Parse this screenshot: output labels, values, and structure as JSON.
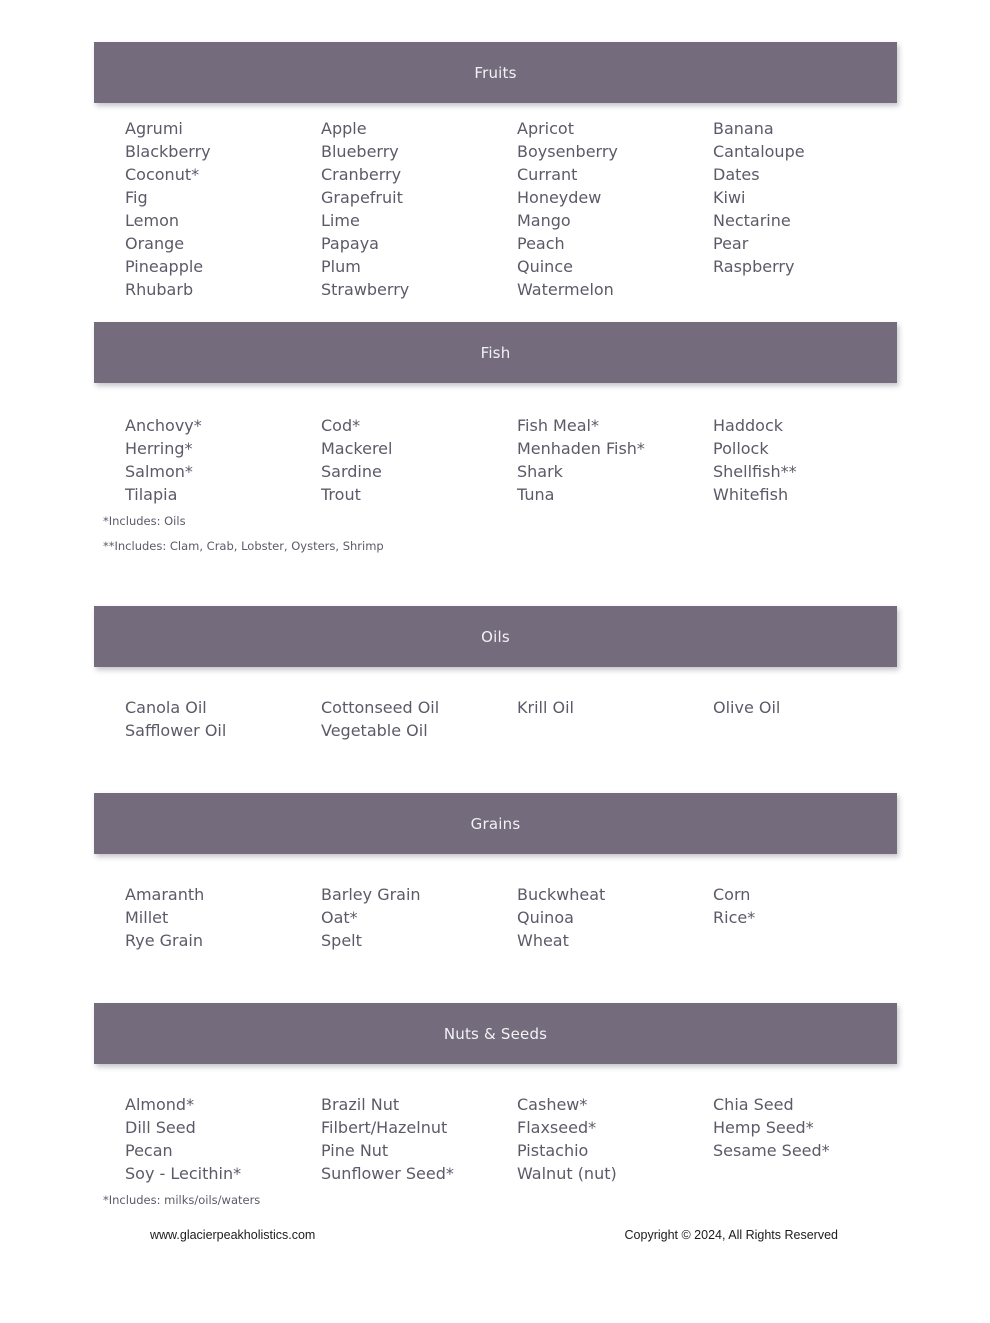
{
  "colors": {
    "header_bar": "#746c7c",
    "header_text": "#f2f1f4",
    "item_text": "#5e5968",
    "footer_text": "#1c1c1c"
  },
  "sections": [
    {
      "id": "fruits",
      "title": "Fruits",
      "columns": [
        [
          "Agrumi",
          "Blackberry",
          "Coconut*",
          "Fig",
          "Lemon",
          "Orange",
          "Pineapple",
          "Rhubarb"
        ],
        [
          "Apple",
          "Blueberry",
          "Cranberry",
          "Grapefruit",
          "Lime",
          "Papaya",
          "Plum",
          "Strawberry"
        ],
        [
          "Apricot",
          "Boysenberry",
          "Currant",
          "Honeydew",
          "Mango",
          "Peach",
          "Quince",
          "Watermelon"
        ],
        [
          "Banana",
          "Cantaloupe",
          "Dates",
          "Kiwi",
          "Nectarine",
          "Pear",
          "Raspberry"
        ]
      ],
      "footnotes": []
    },
    {
      "id": "fish",
      "title": "Fish",
      "columns": [
        [
          "Anchovy*",
          "Herring*",
          "Salmon*",
          "Tilapia"
        ],
        [
          "Cod*",
          "Mackerel",
          "Sardine",
          "Trout"
        ],
        [
          "Fish Meal*",
          "Menhaden Fish*",
          "Shark",
          "Tuna"
        ],
        [
          "Haddock",
          "Pollock",
          "Shellfish**",
          "Whitefish"
        ]
      ],
      "footnotes": [
        "*Includes: Oils",
        "**Includes: Clam, Crab, Lobster, Oysters, Shrimp"
      ]
    },
    {
      "id": "oils",
      "title": "Oils",
      "columns": [
        [
          "Canola Oil",
          "Safflower Oil"
        ],
        [
          "Cottonseed Oil",
          "Vegetable Oil"
        ],
        [
          "Krill Oil"
        ],
        [
          "Olive Oil"
        ]
      ],
      "footnotes": []
    },
    {
      "id": "grains",
      "title": "Grains",
      "columns": [
        [
          "Amaranth",
          "Millet",
          "Rye Grain"
        ],
        [
          "Barley Grain",
          "Oat*",
          "Spelt"
        ],
        [
          "Buckwheat",
          "Quinoa",
          "Wheat"
        ],
        [
          "Corn",
          "Rice*"
        ]
      ],
      "footnotes": []
    },
    {
      "id": "nuts-seeds",
      "title": "Nuts & Seeds",
      "columns": [
        [
          "Almond*",
          "Dill Seed",
          "Pecan",
          "Soy - Lecithin*"
        ],
        [
          "Brazil Nut",
          "Filbert/Hazelnut",
          "Pine Nut",
          "Sunflower Seed*"
        ],
        [
          "Cashew*",
          "Flaxseed*",
          "Pistachio",
          "Walnut (nut)"
        ],
        [
          "Chia Seed",
          "Hemp Seed*",
          "Sesame Seed*"
        ]
      ],
      "footnotes": [
        "*Includes: milks/oils/waters"
      ]
    }
  ],
  "footer": {
    "website": "www.glacierpeakholistics.com",
    "copyright": "Copyright © 2024, All Rights Reserved"
  }
}
